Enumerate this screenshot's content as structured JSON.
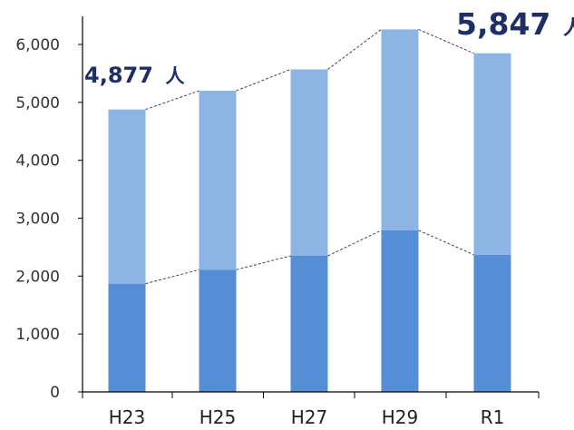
{
  "chart_data": {
    "type": "bar",
    "stacked": true,
    "categories": [
      "H23",
      "H25",
      "H27",
      "H29",
      "R1"
    ],
    "series": [
      {
        "values": [
          1870,
          2110,
          2350,
          2790,
          2370
        ]
      },
      {
        "values": [
          3007,
          3090,
          3220,
          3470,
          3477
        ]
      }
    ],
    "totals": [
      4877,
      5200,
      5570,
      6260,
      5847
    ],
    "ylim": [
      0,
      6000
    ],
    "yticks": [
      "0",
      "1,000",
      "2,000",
      "3,000",
      "4,000",
      "5,000",
      "6,000"
    ],
    "ytick_values": [
      0,
      1000,
      2000,
      3000,
      4000,
      5000,
      6000
    ],
    "grid": false,
    "connector_lines": "dashed",
    "colors": {
      "series_bottom": "#558ed5",
      "series_top": "#8eb4e3",
      "annotation": "#1f2f63",
      "axis": "#000000"
    },
    "annotations": {
      "start": {
        "value": "4,877",
        "unit": "人"
      },
      "end": {
        "value": "5,847",
        "unit": "人"
      }
    }
  }
}
